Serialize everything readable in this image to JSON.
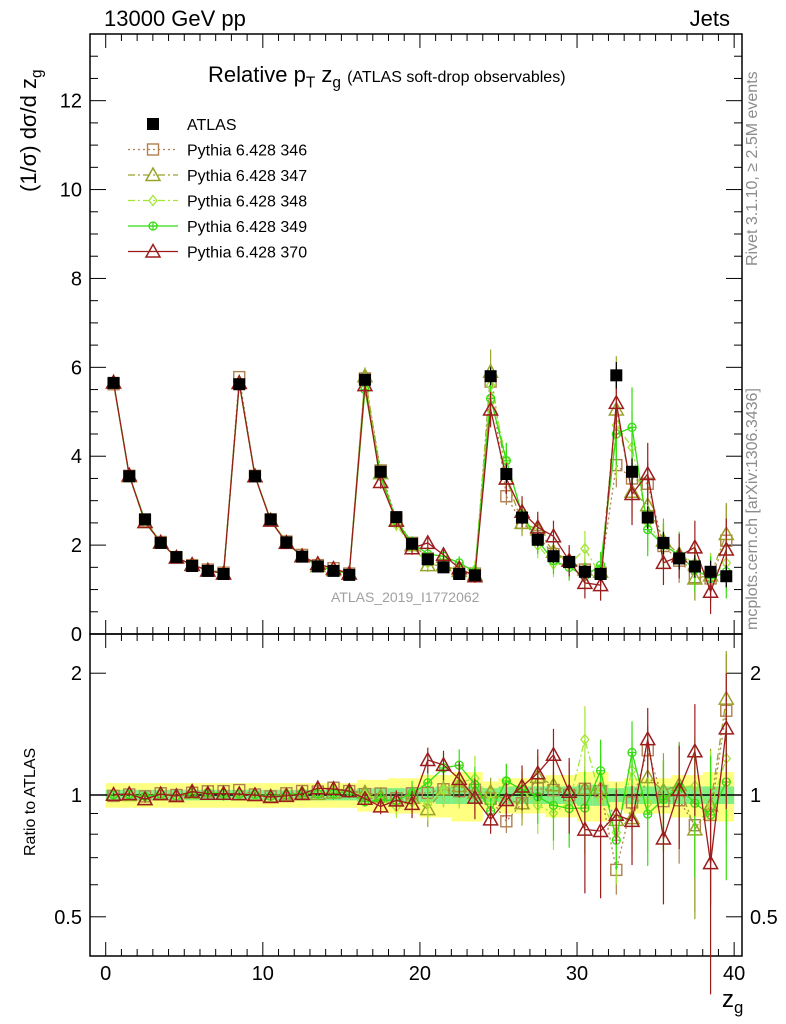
{
  "header": {
    "left": "13000 GeV pp",
    "right": "Jets"
  },
  "side_labels": {
    "rivet": "Rivet 3.1.10, ≥ 2.5M events",
    "mcplots": "mcplots.cern.ch [arXiv:1306.3436]"
  },
  "analysis_tag": "ATLAS_2019_I1772062",
  "chart_data": [
    {
      "panel": "main",
      "type": "scatter",
      "title": "Relative pT zg (ATLAS soft-drop observables)",
      "title_main": "Relative p",
      "title_sub": "T",
      "title_zg": "z",
      "title_zg_sub": "g",
      "title_small": "(ATLAS soft-drop observables)",
      "ylabel": "(1/σ) dσ/d z",
      "ylabel_sub": "g",
      "ylim": [
        0,
        13.5
      ],
      "xlim": [
        -1,
        40.5
      ],
      "y_ticks": [
        "0",
        "2",
        "4",
        "6",
        "8",
        "10",
        "12"
      ],
      "legend_position": "top-left",
      "x": [
        0.5,
        1.5,
        2.5,
        3.5,
        4.5,
        5.5,
        6.5,
        7.5,
        8.5,
        9.5,
        10.5,
        11.5,
        12.5,
        13.5,
        14.5,
        15.5,
        16.5,
        17.5,
        18.5,
        19.5,
        20.5,
        21.5,
        22.5,
        23.5,
        24.5,
        25.5,
        26.5,
        27.5,
        28.5,
        29.5,
        30.5,
        31.5,
        32.5,
        33.5,
        34.5,
        35.5,
        36.5,
        37.5,
        38.5,
        39.5
      ],
      "series": [
        {
          "name": "ATLAS",
          "color": "#000000",
          "marker": "square-filled",
          "line": "none",
          "values": [
            5.65,
            3.55,
            2.58,
            2.05,
            1.73,
            1.53,
            1.42,
            1.35,
            5.62,
            3.55,
            2.58,
            2.06,
            1.74,
            1.52,
            1.42,
            1.33,
            5.72,
            3.65,
            2.63,
            2.03,
            1.68,
            1.5,
            1.35,
            1.32,
            5.8,
            3.6,
            2.62,
            2.12,
            1.75,
            1.62,
            1.4,
            1.35,
            5.82,
            3.65,
            2.62,
            2.05,
            1.7,
            1.52,
            1.4,
            1.3
          ],
          "errors": [
            0.05,
            0.05,
            0.05,
            0.05,
            0.05,
            0.05,
            0.05,
            0.05,
            0.05,
            0.05,
            0.05,
            0.05,
            0.05,
            0.05,
            0.05,
            0.05,
            0.1,
            0.1,
            0.1,
            0.1,
            0.1,
            0.1,
            0.1,
            0.1,
            0.2,
            0.2,
            0.15,
            0.15,
            0.15,
            0.15,
            0.15,
            0.15,
            0.3,
            0.3,
            0.25,
            0.25,
            0.25,
            0.25,
            0.25,
            0.25
          ]
        },
        {
          "name": "Pythia 6.428 346",
          "color": "#b08050",
          "marker": "square-open",
          "line": "dotted",
          "values": [
            5.62,
            3.56,
            2.56,
            2.07,
            1.73,
            1.55,
            1.45,
            1.38,
            5.78,
            3.56,
            2.56,
            2.08,
            1.78,
            1.55,
            1.48,
            1.36,
            5.75,
            3.68,
            2.58,
            2.05,
            1.7,
            1.55,
            1.38,
            1.36,
            5.68,
            3.1,
            2.5,
            2.2,
            1.8,
            1.62,
            1.45,
            1.38,
            3.8,
            3.5,
            3.38,
            1.98,
            1.65,
            1.28,
            1.25,
            2.1
          ],
          "errors": [
            0.05,
            0.05,
            0.05,
            0.05,
            0.05,
            0.05,
            0.05,
            0.05,
            0.06,
            0.05,
            0.05,
            0.05,
            0.05,
            0.05,
            0.05,
            0.05,
            0.1,
            0.1,
            0.1,
            0.1,
            0.1,
            0.1,
            0.1,
            0.1,
            0.2,
            0.2,
            0.2,
            0.2,
            0.2,
            0.2,
            0.2,
            0.2,
            0.5,
            0.5,
            0.5,
            0.5,
            0.5,
            0.5,
            0.5,
            0.8
          ]
        },
        {
          "name": "Pythia 6.428 347",
          "color": "#99a32a",
          "marker": "triangle-open",
          "line": "dashdot",
          "values": [
            5.66,
            3.55,
            2.52,
            2.06,
            1.72,
            1.55,
            1.43,
            1.36,
            5.65,
            3.55,
            2.56,
            2.06,
            1.76,
            1.53,
            1.44,
            1.36,
            5.8,
            3.62,
            2.55,
            2.0,
            1.55,
            1.55,
            1.42,
            1.34,
            5.9,
            3.5,
            2.5,
            2.35,
            1.85,
            1.65,
            1.45,
            1.4,
            5.05,
            3.2,
            2.9,
            2.1,
            1.8,
            1.25,
            1.32,
            2.25
          ],
          "errors": [
            0.05,
            0.05,
            0.05,
            0.05,
            0.05,
            0.05,
            0.05,
            0.05,
            0.05,
            0.05,
            0.05,
            0.05,
            0.05,
            0.05,
            0.05,
            0.05,
            0.2,
            0.2,
            0.1,
            0.1,
            0.15,
            0.15,
            0.15,
            0.15,
            0.5,
            0.3,
            0.3,
            0.3,
            0.3,
            0.3,
            0.3,
            0.3,
            1.2,
            0.6,
            0.6,
            0.5,
            0.5,
            0.5,
            0.5,
            0.7
          ]
        },
        {
          "name": "Pythia 6.428 348",
          "color": "#a3e635",
          "marker": "diamond-open",
          "line": "dashdot",
          "values": [
            5.66,
            3.55,
            2.55,
            2.05,
            1.72,
            1.54,
            1.44,
            1.36,
            5.64,
            3.55,
            2.57,
            2.06,
            1.76,
            1.53,
            1.45,
            1.35,
            5.72,
            3.55,
            2.46,
            1.95,
            1.6,
            1.55,
            1.45,
            1.45,
            5.6,
            3.9,
            2.7,
            2.0,
            1.58,
            1.55,
            1.92,
            1.32,
            4.7,
            4.2,
            2.5,
            2.0,
            1.78,
            1.6,
            1.3,
            1.6
          ],
          "errors": [
            0.05,
            0.05,
            0.05,
            0.05,
            0.05,
            0.05,
            0.05,
            0.05,
            0.05,
            0.05,
            0.05,
            0.05,
            0.05,
            0.05,
            0.05,
            0.05,
            0.15,
            0.15,
            0.15,
            0.1,
            0.15,
            0.15,
            0.2,
            0.2,
            0.4,
            0.4,
            0.3,
            0.3,
            0.3,
            0.3,
            0.4,
            0.4,
            1.2,
            0.8,
            0.6,
            0.5,
            0.5,
            0.5,
            0.5,
            0.6
          ]
        },
        {
          "name": "Pythia 6.428 349",
          "color": "#33dd11",
          "marker": "circle-open-cross",
          "line": "solid",
          "values": [
            5.66,
            3.56,
            2.56,
            2.06,
            1.72,
            1.55,
            1.44,
            1.36,
            5.65,
            3.56,
            2.56,
            2.06,
            1.76,
            1.53,
            1.43,
            1.36,
            5.5,
            3.55,
            2.55,
            2.05,
            1.8,
            1.75,
            1.6,
            1.4,
            5.3,
            3.9,
            2.7,
            2.1,
            1.65,
            1.5,
            1.3,
            1.55,
            4.5,
            4.65,
            2.35,
            2.0,
            1.78,
            1.45,
            1.25,
            1.4
          ],
          "errors": [
            0.05,
            0.05,
            0.05,
            0.05,
            0.05,
            0.05,
            0.05,
            0.05,
            0.05,
            0.05,
            0.05,
            0.05,
            0.05,
            0.05,
            0.05,
            0.05,
            0.15,
            0.15,
            0.15,
            0.15,
            0.15,
            0.15,
            0.15,
            0.15,
            0.4,
            0.4,
            0.3,
            0.3,
            0.3,
            0.3,
            0.3,
            0.3,
            0.7,
            0.9,
            0.6,
            0.5,
            0.5,
            0.5,
            0.5,
            0.6
          ]
        },
        {
          "name": "Pythia 6.428 370",
          "color": "#9b1c1c",
          "marker": "triangle-open",
          "line": "solid",
          "values": [
            5.66,
            3.57,
            2.52,
            2.06,
            1.72,
            1.56,
            1.43,
            1.36,
            5.65,
            3.55,
            2.55,
            2.05,
            1.75,
            1.58,
            1.47,
            1.36,
            5.6,
            3.42,
            2.55,
            1.93,
            2.05,
            1.78,
            1.48,
            1.3,
            5.05,
            3.5,
            2.75,
            2.4,
            2.2,
            1.65,
            1.15,
            1.1,
            5.2,
            3.15,
            3.6,
            1.6,
            1.75,
            1.95,
            0.95,
            1.9
          ],
          "errors": [
            0.05,
            0.05,
            0.05,
            0.05,
            0.05,
            0.05,
            0.05,
            0.05,
            0.05,
            0.05,
            0.05,
            0.05,
            0.05,
            0.05,
            0.05,
            0.05,
            0.15,
            0.15,
            0.15,
            0.15,
            0.15,
            0.15,
            0.15,
            0.15,
            0.4,
            0.35,
            0.35,
            0.35,
            0.35,
            0.35,
            0.35,
            0.35,
            0.8,
            0.7,
            0.7,
            0.5,
            0.5,
            0.6,
            0.5,
            0.7
          ]
        }
      ]
    },
    {
      "panel": "ratio",
      "type": "scatter",
      "ylabel": "Ratio to ATLAS",
      "xlabel": "z",
      "xlabel_sub": "g",
      "yscale": "log",
      "ylim": [
        0.4,
        2.5
      ],
      "xlim": [
        -1,
        40.5
      ],
      "y_ticks": [
        "0.5",
        "1",
        "2"
      ],
      "x_ticks": [
        "0",
        "10",
        "20",
        "30",
        "40"
      ],
      "band_colors": {
        "inner": "#80ee80",
        "outer": "#ffff80"
      },
      "band_inner": [
        0.03,
        0.03,
        0.03,
        0.03,
        0.03,
        0.03,
        0.03,
        0.03,
        0.03,
        0.03,
        0.03,
        0.03,
        0.03,
        0.03,
        0.03,
        0.03,
        0.04,
        0.04,
        0.04,
        0.04,
        0.04,
        0.05,
        0.05,
        0.05,
        0.04,
        0.05,
        0.05,
        0.05,
        0.05,
        0.05,
        0.06,
        0.06,
        0.04,
        0.05,
        0.05,
        0.05,
        0.05,
        0.05,
        0.05,
        0.05
      ],
      "band_outer": [
        0.07,
        0.07,
        0.07,
        0.07,
        0.07,
        0.07,
        0.07,
        0.07,
        0.07,
        0.07,
        0.07,
        0.07,
        0.07,
        0.07,
        0.07,
        0.07,
        0.09,
        0.09,
        0.1,
        0.1,
        0.12,
        0.12,
        0.14,
        0.14,
        0.08,
        0.1,
        0.1,
        0.1,
        0.12,
        0.12,
        0.14,
        0.14,
        0.08,
        0.1,
        0.1,
        0.1,
        0.12,
        0.12,
        0.14,
        0.14
      ]
    }
  ]
}
